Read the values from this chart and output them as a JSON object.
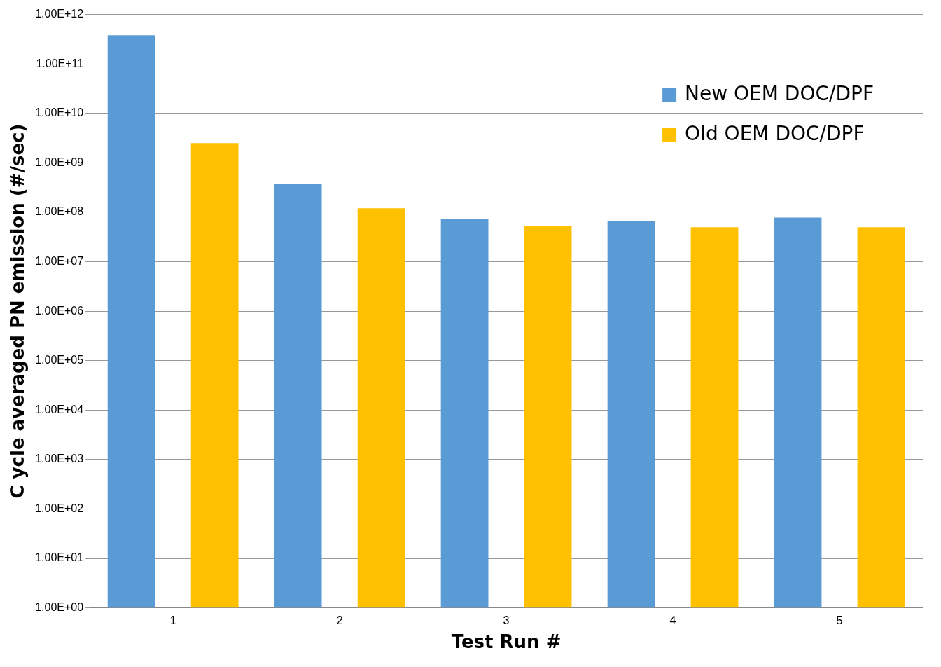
{
  "chart_data": {
    "type": "bar",
    "xlabel": "Test Run #",
    "ylabel": "C ycle averaged PN emission (#/sec)",
    "categories": [
      "1",
      "2",
      "3",
      "4",
      "5"
    ],
    "series": [
      {
        "name": "New OEM DOC/DPF",
        "color": "#5b9bd5",
        "values": [
          380000000000.0,
          370000000.0,
          73000000.0,
          66000000.0,
          78000000.0
        ]
      },
      {
        "name": "Old OEM DOC/DPF",
        "color": "#ffc000",
        "values": [
          2500000000.0,
          120000000.0,
          53000000.0,
          50000000.0,
          50000000.0
        ]
      }
    ],
    "log": "y",
    "ylim": [
      1,
      1000000000000.0
    ],
    "yticks": [
      {
        "value": 1,
        "label": "1.00E+00"
      },
      {
        "value": 10,
        "label": "1.00E+01"
      },
      {
        "value": 100,
        "label": "1.00E+02"
      },
      {
        "value": 1000,
        "label": "1.00E+03"
      },
      {
        "value": 10000,
        "label": "1.00E+04"
      },
      {
        "value": 100000,
        "label": "1.00E+05"
      },
      {
        "value": 1000000,
        "label": "1.00E+06"
      },
      {
        "value": 10000000,
        "label": "1.00E+07"
      },
      {
        "value": 100000000,
        "label": "1.00E+08"
      },
      {
        "value": 1000000000,
        "label": "1.00E+09"
      },
      {
        "value": 10000000000,
        "label": "1.00E+10"
      },
      {
        "value": 100000000000,
        "label": "1.00E+11"
      },
      {
        "value": 1000000000000,
        "label": "1.00E+12"
      }
    ],
    "grid": "y",
    "legend": "top right"
  }
}
